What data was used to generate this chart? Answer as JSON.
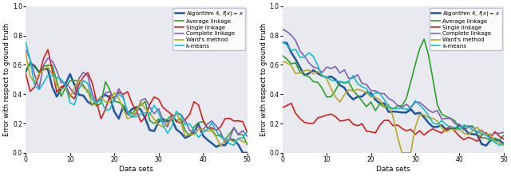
{
  "figsize": [
    6.4,
    2.21
  ],
  "dpi": 100,
  "bg_color": "#e8eaf0",
  "ylim": [
    0.0,
    1.0
  ],
  "xlim": [
    0,
    50
  ],
  "xticks": [
    0,
    10,
    20,
    30,
    40,
    50
  ],
  "yticks": [
    0.0,
    0.2,
    0.4,
    0.6,
    0.8,
    1.0
  ],
  "xlabel": "Data sets",
  "ylabel": "Error with respect to ground truth",
  "legend_labels": [
    "Algorithm 4, $f(x) = x$",
    "Average linkage",
    "Single linkage",
    "Complete linkage",
    "Ward's method",
    "k-means"
  ],
  "line_colors": [
    "#2155a0",
    "#2da02c",
    "#d42020",
    "#8060b0",
    "#b8a822",
    "#18bccc"
  ],
  "line_widths": [
    1.8,
    1.2,
    1.2,
    1.2,
    1.2,
    1.2
  ],
  "n_points": 51
}
